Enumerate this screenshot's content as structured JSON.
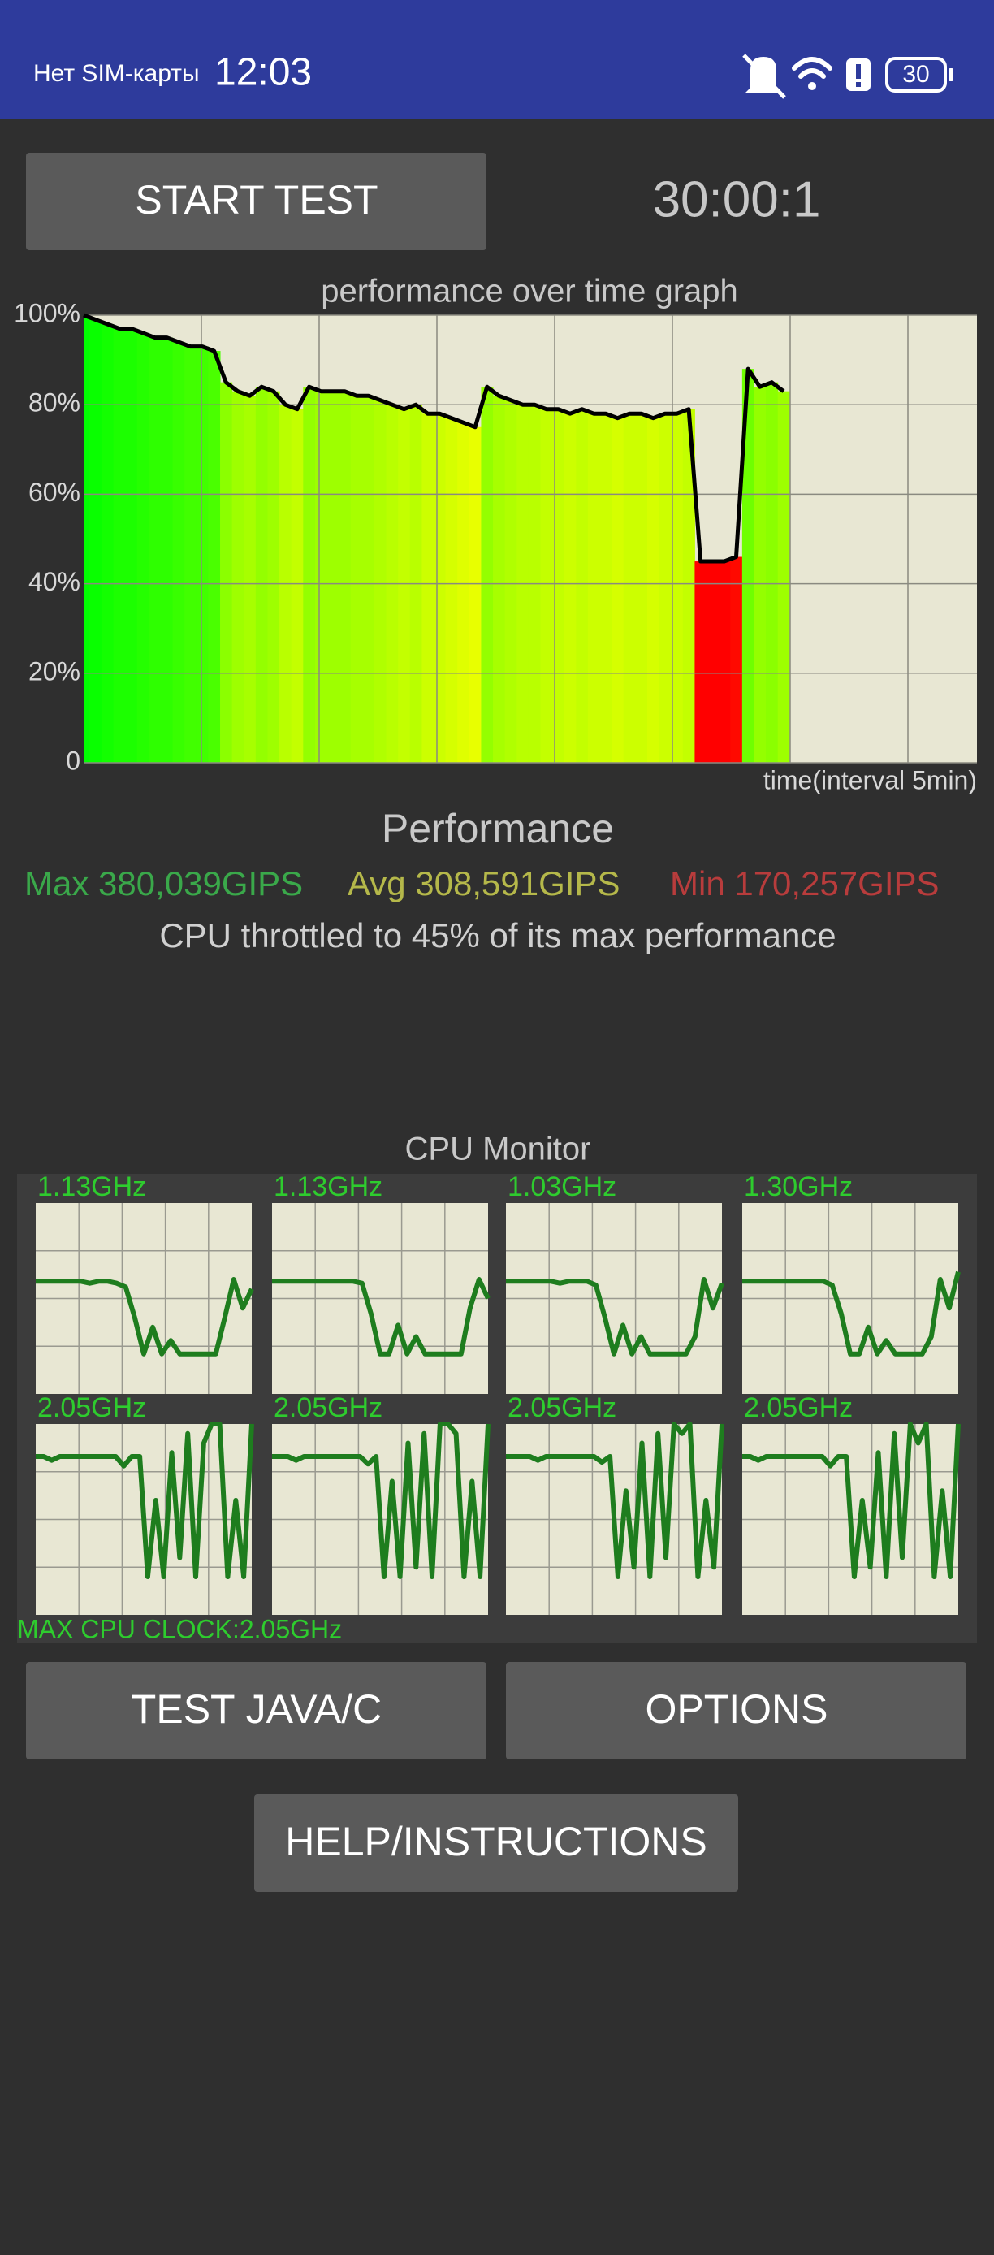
{
  "status_bar": {
    "carrier": "Нет SIM-карты",
    "time": "12:03",
    "battery": "30"
  },
  "buttons": {
    "start": "START TEST",
    "test_java": "TEST JAVA/C",
    "options": "OPTIONS",
    "help": "HELP/INSTRUCTIONS"
  },
  "timer": "30:00:1",
  "chart_data": {
    "type": "line",
    "title": "performance over time graph",
    "x_label": "time(interval 5min)",
    "values": [
      100,
      99,
      98,
      97,
      97,
      96,
      95,
      95,
      94,
      93,
      93,
      92,
      85,
      83,
      82,
      84,
      83,
      80,
      79,
      84,
      83,
      83,
      83,
      82,
      82,
      81,
      80,
      79,
      80,
      78,
      78,
      77,
      76,
      75,
      84,
      82,
      81,
      80,
      80,
      79,
      79,
      78,
      79,
      78,
      78,
      77,
      78,
      78,
      77,
      78,
      78,
      79,
      45,
      45,
      45,
      46,
      88,
      84,
      85,
      83
    ],
    "color": "#000000",
    "ylim": [
      0,
      100
    ],
    "yticks": [
      0,
      {
        "value": 20,
        "label": "20%"
      },
      {
        "value": 40,
        "label": "40%"
      },
      {
        "value": 60,
        "label": "60%"
      },
      {
        "value": 80,
        "label": "80%"
      },
      {
        "value": 100,
        "label": "100%"
      }
    ],
    "grid": true
  },
  "performance": {
    "title": "Performance",
    "max": "Max 380,039GIPS",
    "avg": "Avg 308,591GIPS",
    "min": "Min 170,257GIPS",
    "message": "CPU throttled to 45% of its max performance"
  },
  "cpu_monitor": {
    "title": "CPU Monitor",
    "ylim": [
      0,
      100
    ],
    "color": "#1e7d1e",
    "cores": [
      {
        "clock": "1.13GHz",
        "values": [
          59,
          59,
          59,
          59,
          59,
          59,
          58,
          59,
          59,
          58,
          56,
          40,
          21,
          35,
          21,
          28,
          21,
          21,
          21,
          21,
          21,
          40,
          60,
          45,
          55
        ]
      },
      {
        "clock": "1.13GHz",
        "values": [
          59,
          59,
          59,
          59,
          59,
          59,
          59,
          59,
          59,
          59,
          58,
          42,
          21,
          21,
          36,
          21,
          30,
          21,
          21,
          21,
          21,
          21,
          45,
          60,
          50
        ]
      },
      {
        "clock": "1.03GHz",
        "values": [
          59,
          59,
          59,
          59,
          59,
          59,
          58,
          59,
          59,
          59,
          57,
          40,
          21,
          36,
          21,
          30,
          21,
          21,
          21,
          21,
          21,
          30,
          60,
          45,
          58
        ]
      },
      {
        "clock": "1.30GHz",
        "values": [
          59,
          59,
          59,
          59,
          59,
          59,
          59,
          59,
          59,
          59,
          57,
          42,
          21,
          21,
          35,
          21,
          28,
          21,
          21,
          21,
          21,
          30,
          60,
          45,
          64
        ]
      },
      {
        "clock": "2.05GHz",
        "values": [
          83,
          83,
          81,
          83,
          83,
          83,
          83,
          83,
          83,
          83,
          83,
          78,
          83,
          83,
          20,
          60,
          20,
          85,
          30,
          95,
          20,
          90,
          100,
          100,
          20,
          60,
          20,
          100
        ]
      },
      {
        "clock": "2.05GHz",
        "values": [
          83,
          83,
          83,
          81,
          83,
          83,
          83,
          83,
          83,
          83,
          83,
          83,
          79,
          83,
          20,
          70,
          20,
          90,
          25,
          95,
          20,
          100,
          100,
          95,
          20,
          70,
          20,
          100
        ]
      },
      {
        "clock": "2.05GHz",
        "values": [
          83,
          83,
          83,
          83,
          81,
          83,
          83,
          83,
          83,
          83,
          83,
          83,
          80,
          83,
          20,
          65,
          25,
          90,
          20,
          95,
          30,
          100,
          95,
          100,
          20,
          60,
          25,
          100
        ]
      },
      {
        "clock": "2.05GHz",
        "values": [
          83,
          83,
          81,
          83,
          83,
          83,
          83,
          83,
          83,
          83,
          83,
          78,
          83,
          83,
          20,
          60,
          25,
          85,
          20,
          95,
          30,
          100,
          90,
          100,
          20,
          65,
          20,
          100
        ]
      }
    ],
    "max_clock": "MAX CPU CLOCK:2.05GHz"
  }
}
